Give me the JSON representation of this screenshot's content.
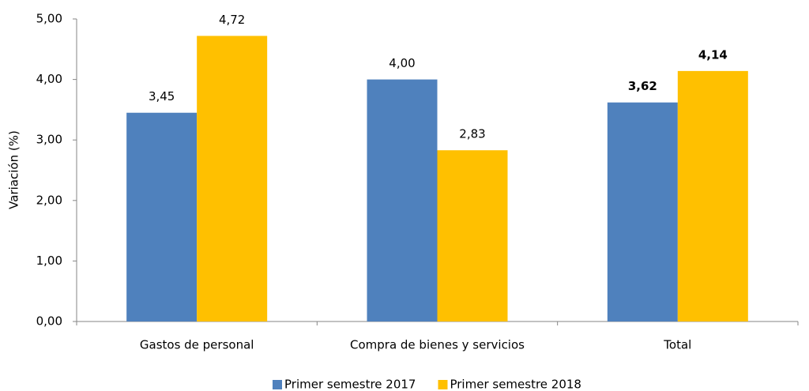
{
  "chart_data": {
    "type": "bar",
    "y_label": "Variación (%)",
    "categories": [
      "Gastos de personal",
      "Compra de bienes y servicios",
      "Total"
    ],
    "series": [
      {
        "name": "Primer semestre 2017",
        "color": "#4f81bd",
        "values": [
          3.45,
          4.0,
          3.62
        ],
        "value_labels": [
          "3,45",
          "4,00",
          "3,62"
        ]
      },
      {
        "name": "Primer semestre 2018",
        "color": "#ffc000",
        "values": [
          4.72,
          2.83,
          4.14
        ],
        "value_labels": [
          "4,72",
          "2,83",
          "4,14"
        ]
      }
    ],
    "ylim": [
      0,
      5
    ],
    "yticks": [
      {
        "value": 0,
        "label": "0,00"
      },
      {
        "value": 1,
        "label": "1,00"
      },
      {
        "value": 2,
        "label": "2,00"
      },
      {
        "value": 3,
        "label": "3,00"
      },
      {
        "value": 4,
        "label": "4,00"
      },
      {
        "value": 5,
        "label": "5,00"
      }
    ],
    "legend": "bottom"
  }
}
